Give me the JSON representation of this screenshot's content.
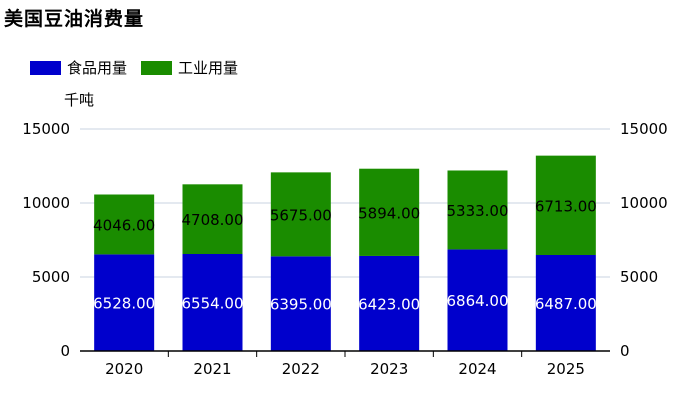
{
  "chart_data": {
    "type": "bar",
    "stacked": true,
    "title": "美国豆油消费量",
    "unit_label": "千吨",
    "categories": [
      "2020",
      "2021",
      "2022",
      "2023",
      "2024",
      "2025"
    ],
    "series": [
      {
        "name": "食品用量",
        "color": "#0000cc",
        "values": [
          6528,
          6554,
          6395,
          6423,
          6864,
          6487
        ],
        "labels": [
          "6528.00",
          "6554.00",
          "6395.00",
          "6423.00",
          "6864.00",
          "6487.00"
        ]
      },
      {
        "name": "工业用量",
        "color": "#1a8c00",
        "values": [
          4046,
          4708,
          5675,
          5894,
          5333,
          6713
        ],
        "labels": [
          "4046.00",
          "4708.00",
          "5675.00",
          "5894.00",
          "5333.00",
          "6713.00"
        ]
      }
    ],
    "ylim": [
      0,
      15000
    ],
    "yticks": [
      "0",
      "5000",
      "10000",
      "15000"
    ],
    "grid": true,
    "legend": "top-left",
    "colors": {
      "grid": "#c9d3e0",
      "axis": "#000000"
    }
  }
}
